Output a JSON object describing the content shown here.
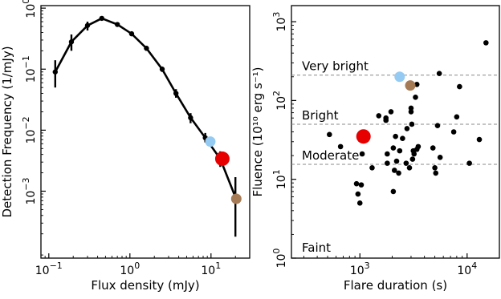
{
  "chart_data": [
    {
      "type": "line",
      "xlabel": "Flux density (mJy)",
      "ylabel": "Detection Frequency (1/mJy)",
      "xscale": "log",
      "yscale": "log",
      "xlim": [
        0.08,
        30
      ],
      "ylim": [
        8e-05,
        1.1
      ],
      "x_ticks": [
        {
          "value": 0.1,
          "base": "10",
          "exp": "−1"
        },
        {
          "value": 1,
          "base": "10",
          "exp": "0"
        },
        {
          "value": 10,
          "base": "10",
          "exp": "1"
        }
      ],
      "y_ticks": [
        {
          "value": 0.001,
          "base": "10",
          "exp": "−3"
        },
        {
          "value": 0.01,
          "base": "10",
          "exp": "−2"
        },
        {
          "value": 0.1,
          "base": "10",
          "exp": "−1"
        },
        {
          "value": 1,
          "base": "10",
          "exp": "0"
        }
      ],
      "series": [
        {
          "x": [
            0.12,
            0.19,
            0.3,
            0.45,
            0.7,
            1.05,
            1.6,
            2.5,
            3.7,
            5.6,
            8.5,
            13,
            20
          ],
          "y": [
            0.09,
            0.28,
            0.52,
            0.68,
            0.54,
            0.38,
            0.22,
            0.1,
            0.04,
            0.016,
            0.0075,
            0.0034,
            0.0008
          ],
          "err_low": [
            0.05,
            0.2,
            0.43,
            0.63,
            0.5,
            0.35,
            0.2,
            0.09,
            0.034,
            0.013,
            0.0063,
            0.0025,
            0.00018
          ],
          "err_high": [
            0.14,
            0.37,
            0.6,
            0.73,
            0.58,
            0.41,
            0.24,
            0.11,
            0.047,
            0.019,
            0.009,
            0.0045,
            0.0017
          ],
          "color": "#000000"
        }
      ],
      "highlights": [
        {
          "x": 9.8,
          "y": 0.0065,
          "color": "#95cbf2",
          "size": "small"
        },
        {
          "x": 13.8,
          "y": 0.0034,
          "color": "#e60000",
          "size": "large"
        },
        {
          "x": 20.5,
          "y": 0.00075,
          "color": "#a57b56",
          "size": "small"
        }
      ]
    },
    {
      "type": "scatter",
      "xlabel": "Flare duration (s)",
      "ylabel": "Fluence (10¹⁰ erg s⁻¹)",
      "xscale": "log",
      "yscale": "log",
      "xlim": [
        230,
        20000
      ],
      "ylim": [
        1,
        1600
      ],
      "x_ticks": [
        {
          "value": 1000,
          "base": "10",
          "exp": "3"
        },
        {
          "value": 10000,
          "base": "10",
          "exp": "4"
        }
      ],
      "y_ticks": [
        {
          "value": 1,
          "base": "10",
          "exp": "0"
        },
        {
          "value": 10,
          "base": "10",
          "exp": "1"
        },
        {
          "value": 100,
          "base": "10",
          "exp": "2"
        },
        {
          "value": 1000,
          "base": "10",
          "exp": "3"
        }
      ],
      "thresholds": [
        {
          "label": "Very bright",
          "y": 210
        },
        {
          "label": "Bright",
          "y": 50
        },
        {
          "label": "Moderate",
          "y": 15.5
        },
        {
          "label": "Faint",
          "y": null
        }
      ],
      "points": {
        "x": [
          520,
          660,
          930,
          960,
          1000,
          1030,
          1300,
          1500,
          1750,
          1750,
          1800,
          1800,
          1950,
          2050,
          2050,
          2100,
          2150,
          2200,
          2300,
          2350,
          2500,
          2700,
          2750,
          2900,
          3000,
          3000,
          3050,
          3100,
          3150,
          3200,
          3300,
          3400,
          3400,
          3500,
          4800,
          5000,
          5100,
          5300,
          5500,
          5600,
          7500,
          8000,
          8500,
          10500,
          13000,
          15000,
          1050
        ],
        "y": [
          37,
          26,
          8.8,
          6.5,
          5,
          8.5,
          14,
          64,
          60,
          56,
          21,
          16,
          72,
          25,
          7,
          13,
          35,
          17,
          12,
          23,
          33,
          16,
          44,
          14,
          80,
          72,
          50,
          18,
          23,
          21,
          110,
          24,
          160,
          26,
          25,
          14,
          12,
          48,
          220,
          19,
          40,
          62,
          150,
          16,
          32,
          540,
          21
        ],
        "color": "#000000"
      },
      "highlights": [
        {
          "x": 1080,
          "y": 35,
          "color": "#e60000",
          "size": "large"
        },
        {
          "x": 2350,
          "y": 200,
          "color": "#95cbf2",
          "size": "small"
        },
        {
          "x": 2950,
          "y": 155,
          "color": "#a57b56",
          "size": "small"
        }
      ]
    }
  ]
}
